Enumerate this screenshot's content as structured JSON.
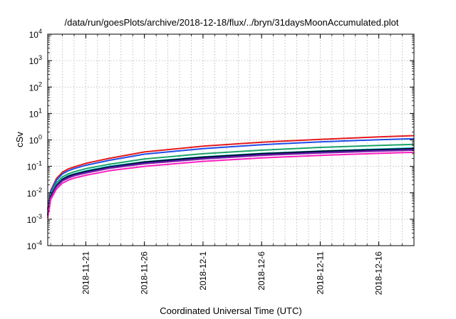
{
  "chart_data": {
    "type": "line",
    "title": "/data/run/goesPlots/archive/2018-12-18/flux/../bryn/31daysMoonAccumulated.plot",
    "xlabel": "Coordinated Universal Time (UTC)",
    "ylabel": "cSv",
    "yscale": "log",
    "ylim": [
      0.0001,
      10000
    ],
    "xlim": [
      "2018-11-17T18:00",
      "2018-12-19T00:00"
    ],
    "grid": true,
    "legend": "none",
    "y_ticks": [
      {
        "base": "10",
        "exp": "-4",
        "value": 0.0001
      },
      {
        "base": "10",
        "exp": "-3",
        "value": 0.001
      },
      {
        "base": "10",
        "exp": "-2",
        "value": 0.01
      },
      {
        "base": "10",
        "exp": "-1",
        "value": 0.1
      },
      {
        "base": "10",
        "exp": "0",
        "value": 1
      },
      {
        "base": "10",
        "exp": "1",
        "value": 10
      },
      {
        "base": "10",
        "exp": "2",
        "value": 100
      },
      {
        "base": "10",
        "exp": "3",
        "value": 1000
      },
      {
        "base": "10",
        "exp": "4",
        "value": 10000
      }
    ],
    "x_ticks": [
      {
        "label": "2018-11-21",
        "date": "2018-11-21"
      },
      {
        "label": "2018-11-26",
        "date": "2018-11-26"
      },
      {
        "label": "2018-12-1",
        "date": "2018-12-01"
      },
      {
        "label": "2018-12-6",
        "date": "2018-12-06"
      },
      {
        "label": "2018-12-11",
        "date": "2018-12-11"
      },
      {
        "label": "2018-12-16",
        "date": "2018-12-16"
      }
    ],
    "x_minor_grid_days": 1,
    "series": [
      {
        "color": "#e41a1c",
        "x": [
          "2018-11-17T18:00",
          "2018-11-18T00:00",
          "2018-11-18T12:00",
          "2018-11-19T00:00",
          "2018-11-19T12:00",
          "2018-11-20T00:00",
          "2018-11-21T00:00",
          "2018-11-23T00:00",
          "2018-11-26T00:00",
          "2018-12-01T00:00",
          "2018-12-06T00:00",
          "2018-12-11T00:00",
          "2018-12-16T00:00",
          "2018-12-19T00:00"
        ],
        "y": [
          0.0025,
          0.012,
          0.035,
          0.06,
          0.08,
          0.095,
          0.13,
          0.2,
          0.35,
          0.58,
          0.82,
          1.05,
          1.3,
          1.45
        ]
      },
      {
        "color": "#1f4de8",
        "x": [
          "2018-11-17T18:00",
          "2018-11-18T00:00",
          "2018-11-18T12:00",
          "2018-11-19T00:00",
          "2018-11-19T12:00",
          "2018-11-20T00:00",
          "2018-11-21T00:00",
          "2018-11-23T00:00",
          "2018-11-26T00:00",
          "2018-12-01T00:00",
          "2018-12-06T00:00",
          "2018-12-11T00:00",
          "2018-12-16T00:00",
          "2018-12-19T00:00"
        ],
        "y": [
          0.0022,
          0.011,
          0.03,
          0.052,
          0.068,
          0.082,
          0.11,
          0.17,
          0.29,
          0.47,
          0.66,
          0.84,
          1.02,
          1.12
        ]
      },
      {
        "color": "#1aa36a",
        "x": [
          "2018-11-17T18:00",
          "2018-11-18T00:00",
          "2018-11-18T12:00",
          "2018-11-19T00:00",
          "2018-11-19T12:00",
          "2018-11-20T00:00",
          "2018-11-21T00:00",
          "2018-11-23T00:00",
          "2018-11-26T00:00",
          "2018-12-01T00:00",
          "2018-12-06T00:00",
          "2018-12-11T00:00",
          "2018-12-16T00:00",
          "2018-12-19T00:00"
        ],
        "y": [
          0.0018,
          0.009,
          0.024,
          0.04,
          0.052,
          0.062,
          0.082,
          0.12,
          0.19,
          0.3,
          0.41,
          0.52,
          0.62,
          0.68
        ]
      },
      {
        "color": "#00c8e0",
        "x": [
          "2018-11-17T18:00",
          "2018-11-18T00:00",
          "2018-11-18T12:00",
          "2018-11-19T00:00",
          "2018-11-19T12:00",
          "2018-11-20T00:00",
          "2018-11-21T00:00",
          "2018-11-23T00:00",
          "2018-11-26T00:00",
          "2018-12-01T00:00",
          "2018-12-06T00:00",
          "2018-12-11T00:00",
          "2018-12-16T00:00",
          "2018-12-19T00:00"
        ],
        "y": [
          0.0016,
          0.008,
          0.02,
          0.034,
          0.044,
          0.052,
          0.068,
          0.1,
          0.15,
          0.23,
          0.31,
          0.38,
          0.45,
          0.5
        ]
      },
      {
        "color": "#000000",
        "x": [
          "2018-11-17T18:00",
          "2018-11-18T00:00",
          "2018-11-18T12:00",
          "2018-11-19T00:00",
          "2018-11-19T12:00",
          "2018-11-20T00:00",
          "2018-11-21T00:00",
          "2018-11-23T00:00",
          "2018-11-26T00:00",
          "2018-12-01T00:00",
          "2018-12-06T00:00",
          "2018-12-11T00:00",
          "2018-12-16T00:00",
          "2018-12-19T00:00"
        ],
        "y": [
          0.0015,
          0.0075,
          0.019,
          0.032,
          0.042,
          0.05,
          0.064,
          0.095,
          0.145,
          0.22,
          0.3,
          0.37,
          0.43,
          0.47
        ]
      },
      {
        "color": "#1a1a8c",
        "x": [
          "2018-11-17T18:00",
          "2018-11-18T00:00",
          "2018-11-18T12:00",
          "2018-11-19T00:00",
          "2018-11-19T12:00",
          "2018-11-20T00:00",
          "2018-11-21T00:00",
          "2018-11-23T00:00",
          "2018-11-26T00:00",
          "2018-12-01T00:00",
          "2018-12-06T00:00",
          "2018-12-11T00:00",
          "2018-12-16T00:00",
          "2018-12-19T00:00"
        ],
        "y": [
          0.0014,
          0.007,
          0.018,
          0.03,
          0.039,
          0.047,
          0.06,
          0.09,
          0.135,
          0.205,
          0.28,
          0.345,
          0.405,
          0.44
        ]
      },
      {
        "color": "#7a1fa8",
        "x": [
          "2018-11-17T18:00",
          "2018-11-18T00:00",
          "2018-11-18T12:00",
          "2018-11-19T00:00",
          "2018-11-19T12:00",
          "2018-11-20T00:00",
          "2018-11-21T00:00",
          "2018-11-23T00:00",
          "2018-11-26T00:00",
          "2018-12-01T00:00",
          "2018-12-06T00:00",
          "2018-12-11T00:00",
          "2018-12-16T00:00",
          "2018-12-19T00:00"
        ],
        "y": [
          0.0013,
          0.0065,
          0.017,
          0.028,
          0.036,
          0.044,
          0.056,
          0.084,
          0.125,
          0.19,
          0.26,
          0.32,
          0.375,
          0.41
        ]
      },
      {
        "color": "#ff1fbf",
        "x": [
          "2018-11-17T18:00",
          "2018-11-18T00:00",
          "2018-11-18T12:00",
          "2018-11-19T00:00",
          "2018-11-19T12:00",
          "2018-11-20T00:00",
          "2018-11-21T00:00",
          "2018-11-23T00:00",
          "2018-11-26T00:00",
          "2018-12-01T00:00",
          "2018-12-06T00:00",
          "2018-12-11T00:00",
          "2018-12-16T00:00",
          "2018-12-19T00:00"
        ],
        "y": [
          0.0011,
          0.0055,
          0.014,
          0.023,
          0.03,
          0.036,
          0.046,
          0.068,
          0.1,
          0.155,
          0.21,
          0.26,
          0.31,
          0.34
        ]
      }
    ]
  }
}
